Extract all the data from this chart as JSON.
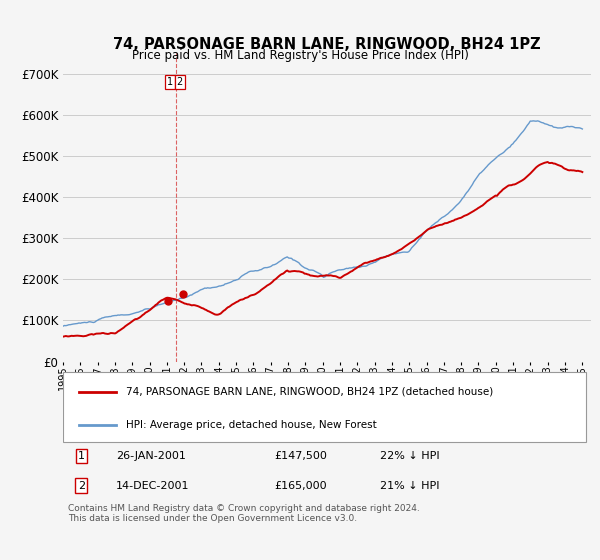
{
  "title": "74, PARSONAGE BARN LANE, RINGWOOD, BH24 1PZ",
  "subtitle": "Price paid vs. HM Land Registry's House Price Index (HPI)",
  "legend_line1": "74, PARSONAGE BARN LANE, RINGWOOD, BH24 1PZ (detached house)",
  "legend_line2": "HPI: Average price, detached house, New Forest",
  "annotation1_label": "1",
  "annotation1_date": "26-JAN-2001",
  "annotation1_price": "£147,500",
  "annotation1_hpi": "22% ↓ HPI",
  "annotation2_label": "2",
  "annotation2_date": "14-DEC-2001",
  "annotation2_price": "£165,000",
  "annotation2_hpi": "21% ↓ HPI",
  "footer": "Contains HM Land Registry data © Crown copyright and database right 2024.\nThis data is licensed under the Open Government Licence v3.0.",
  "red_color": "#cc0000",
  "blue_color": "#6699cc",
  "vline_color": "#cc0000",
  "background_color": "#f5f5f5",
  "grid_color": "#cccccc",
  "ylim": [
    0,
    750000
  ],
  "yticks": [
    0,
    100000,
    200000,
    300000,
    400000,
    500000,
    600000,
    700000
  ],
  "ytick_labels": [
    "£0",
    "£100K",
    "£200K",
    "£300K",
    "£400K",
    "£500K",
    "£600K",
    "£700K"
  ],
  "sale1_t": 2001.07,
  "sale1_price": 147500,
  "sale2_t": 2001.95,
  "sale2_price": 165000,
  "vline_x": 2001.5,
  "xmin": 1995,
  "xmax": 2025.5
}
